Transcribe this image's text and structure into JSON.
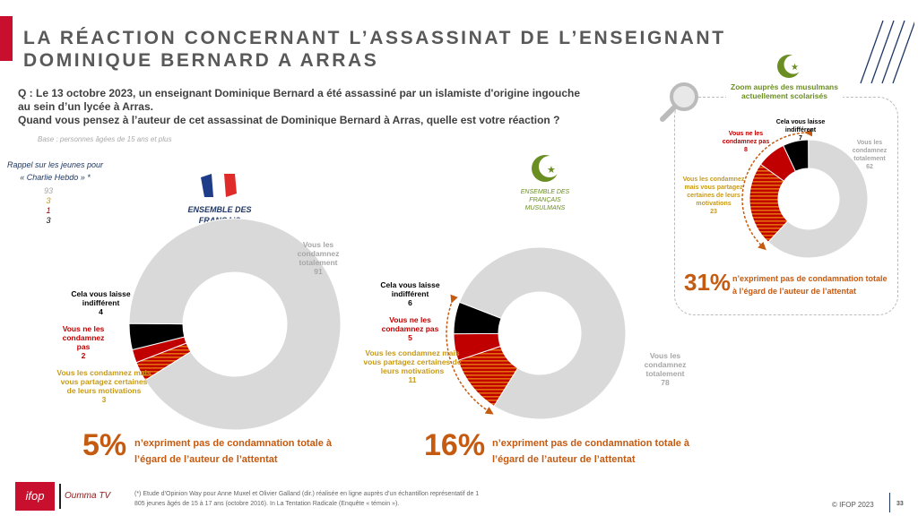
{
  "header": {
    "title_line1": "LA RÉACTION CONCERNANT L’ASSASSINAT DE L’ENSEIGNANT",
    "title_line2": "DOMINIQUE BERNARD A ARRAS"
  },
  "question": {
    "line1": "Q : Le 13 octobre 2023, un enseignant Dominique Bernard a été assassiné par un islamiste d'origine ingouche",
    "line2": "au sein d’un lycée à Arras.",
    "line3": "Quand vous pensez à l’auteur de cet assassinat de Dominique Bernard à Arras, quelle est votre réaction ?",
    "base": "Base : personnes âgées de 15 ans et plus"
  },
  "rappel": {
    "label_line1": "Rappel sur les jeunes pour",
    "label_line2": "« Charlie Hebdo » *",
    "values": [
      "93",
      "3",
      "1",
      "3"
    ]
  },
  "colors": {
    "gray": "#d9d9d9",
    "black": "#000000",
    "red": "#c00000",
    "hatch": "#c55a11",
    "accent": "#c55a11",
    "green": "#6b8e23"
  },
  "chart_data": [
    {
      "type": "pie",
      "title": "ENSEMBLE DES FRANCAIS",
      "categories": [
        "Vous les condamnez totalement",
        "Vous les condamnez mais vous partagez certaines de leurs motivations",
        "Vous ne les condamnez pas",
        "Cela vous laisse indifférent"
      ],
      "values": [
        91,
        3,
        2,
        4
      ],
      "labels": {
        "total": "Vous les condamnez totalement",
        "partage": "Vous les condamnez mais vous partagez certaines de leurs motivations",
        "pas": "Vous ne les condamnez pas",
        "indiff": "Cela vous laisse indifférent"
      },
      "summary_value": "5%",
      "summary_text1": "n’expriment pas de condamnation totale à",
      "summary_text2": "l’égard de l’auteur de l’attentat"
    },
    {
      "type": "pie",
      "title": "ENSEMBLE DES FRANÇAIS MUSULMANS",
      "categories": [
        "Vous les condamnez totalement",
        "Vous les condamnez mais vous partagez certaines de leurs motivations",
        "Vous ne les condamnez pas",
        "Cela vous laisse indifférent"
      ],
      "values": [
        78,
        11,
        5,
        6
      ],
      "summary_value": "16%",
      "summary_text1": "n’expriment pas de condamnation totale à",
      "summary_text2": "l’égard de l’auteur de l’attentat"
    },
    {
      "type": "pie",
      "title": "Zoom auprès des musulmans actuellement scolarisés",
      "categories": [
        "Vous les condamnez totalement",
        "Vous les condamnez mais vous partagez certaines de leurs motivations",
        "Vous ne les condamnez pas",
        "Cela vous laisse indifférent"
      ],
      "values": [
        62,
        23,
        8,
        7
      ],
      "summary_value": "31%",
      "summary_text1": "n’expriment pas de condamnation totale",
      "summary_text2": "à l’égard de l’auteur de l’attentat"
    }
  ],
  "footer": {
    "note_line1": "(*) Etude d’Opinion Way pour Anne Muxel et Olivier Galland (dir.) réalisée en ligne auprès d’un échantillon représentatif de 1",
    "note_line2": "805 jeunes âgés de 15 à 17 ans (octobre 2016). In La Tentation Radicale (Enquête « témoin »).",
    "copyright": "© IFOP 2023",
    "page": "33",
    "logo_ifop": "ifop",
    "logo_partner": "Oumma TV"
  }
}
